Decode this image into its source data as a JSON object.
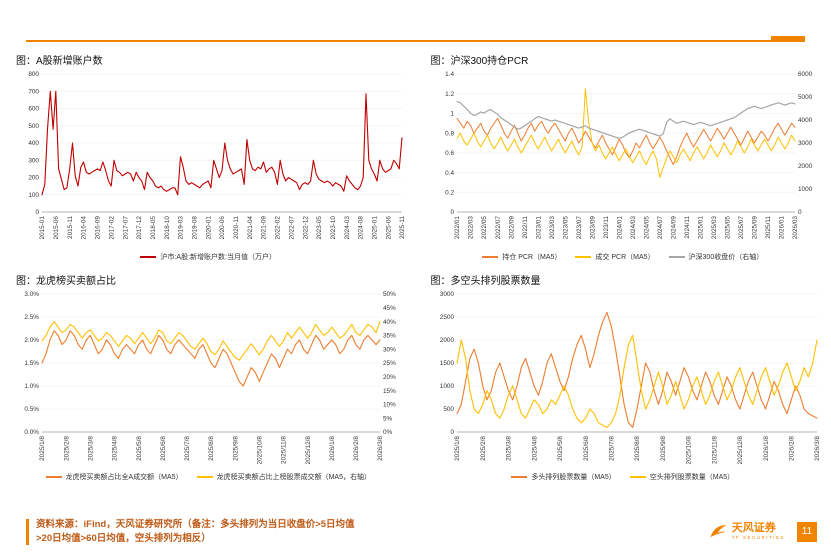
{
  "page": {
    "accent_color": "#F08300",
    "footer": {
      "source_line1": "资料来源：iFind，天风证券研究所（备注：多头排列为当日收盘价>5日均值",
      "source_line2": ">20日均值>60日均值，空头排列为相反）",
      "page_number": "11",
      "logo_text": "天风证券",
      "logo_subtext": "TF SECURITIES"
    }
  },
  "chart_data": [
    {
      "type": "line",
      "title": "图：A股新增账户数",
      "tick_step": 5,
      "x_labels": [
        "2015-01",
        "2015-06",
        "2015-11",
        "2016-04",
        "2016-09",
        "2017-02",
        "2017-07",
        "2017-12",
        "2018-05",
        "2018-10",
        "2019-03",
        "2019-08",
        "2020-01",
        "2020-06",
        "2020-11",
        "2021-04",
        "2021-09",
        "2022-02",
        "2022-07",
        "2022-12",
        "2023-05",
        "2023-10",
        "2024-03",
        "2024-08",
        "2025-01",
        "2025-06",
        "2025-11"
      ],
      "left_axis": {
        "min": 0,
        "max": 800,
        "ticks": [
          "0",
          "100",
          "200",
          "300",
          "400",
          "500",
          "600",
          "700",
          "800"
        ]
      },
      "right_axis": null,
      "series": [
        {
          "name": "沪市:A股:新增账户数:当月值（万户）",
          "color": "#C00000",
          "axis": "left",
          "width": 1.1,
          "values": [
            100,
            160,
            480,
            700,
            480,
            700,
            250,
            190,
            130,
            140,
            250,
            400,
            210,
            150,
            260,
            290,
            230,
            220,
            230,
            240,
            250,
            240,
            290,
            240,
            180,
            150,
            300,
            240,
            230,
            210,
            220,
            230,
            220,
            180,
            230,
            200,
            180,
            130,
            230,
            200,
            180,
            150,
            140,
            150,
            130,
            120,
            130,
            140,
            140,
            100,
            320,
            260,
            180,
            160,
            170,
            160,
            150,
            140,
            160,
            170,
            180,
            140,
            300,
            250,
            200,
            240,
            400,
            300,
            250,
            220,
            230,
            240,
            250,
            160,
            420,
            300,
            250,
            240,
            260,
            250,
            290,
            230,
            250,
            260,
            230,
            160,
            300,
            220,
            180,
            200,
            190,
            180,
            170,
            130,
            160,
            170,
            160,
            180,
            300,
            220,
            190,
            180,
            170,
            180,
            170,
            150,
            170,
            160,
            150,
            120,
            210,
            180,
            160,
            140,
            130,
            150,
            200,
            685,
            300,
            250,
            220,
            180,
            300,
            250,
            230,
            240,
            250,
            300,
            280,
            250,
            430
          ]
        }
      ]
    },
    {
      "type": "line",
      "title": "图：沪深300持仓PCR",
      "tick_step": 4,
      "x_labels": [
        "2022/01",
        "2022/03",
        "2022/05",
        "2022/07",
        "2022/09",
        "2022/11",
        "2023/01",
        "2023/03",
        "2023/05",
        "2023/07",
        "2023/09",
        "2023/11",
        "2024/01",
        "2024/03",
        "2024/05",
        "2024/07",
        "2024/09",
        "2024/11",
        "2025/01",
        "2025/03",
        "2025/05",
        "2025/07",
        "2025/09",
        "2025/11",
        "2026/01",
        "2026/03"
      ],
      "left_axis": {
        "min": 0,
        "max": 1.4,
        "ticks": [
          "0",
          "0.2",
          "0.4",
          "0.6",
          "0.8",
          "1",
          "1.2",
          "1.4"
        ]
      },
      "right_axis": {
        "min": 0,
        "max": 6000,
        "ticks": [
          "0",
          "1000",
          "2000",
          "3000",
          "4000",
          "5000",
          "6000"
        ]
      },
      "series": [
        {
          "name": "持仓 PCR（MA5）",
          "color": "#ED7D31",
          "axis": "left",
          "width": 1.0,
          "values": [
            0.95,
            0.9,
            0.85,
            0.92,
            0.88,
            0.8,
            0.85,
            0.9,
            0.82,
            0.78,
            0.85,
            0.9,
            0.95,
            0.88,
            0.8,
            0.75,
            0.82,
            0.88,
            0.8,
            0.72,
            0.78,
            0.85,
            0.9,
            0.82,
            0.88,
            0.92,
            0.85,
            0.8,
            0.86,
            0.9,
            0.84,
            0.78,
            0.72,
            0.8,
            0.85,
            0.78,
            0.7,
            0.75,
            0.82,
            0.76,
            0.7,
            0.65,
            0.72,
            0.78,
            0.7,
            0.64,
            0.58,
            0.66,
            0.74,
            0.68,
            0.6,
            0.55,
            0.62,
            0.7,
            0.65,
            0.72,
            0.78,
            0.7,
            0.64,
            0.7,
            0.76,
            0.7,
            0.62,
            0.55,
            0.48,
            0.56,
            0.66,
            0.74,
            0.8,
            0.72,
            0.66,
            0.72,
            0.78,
            0.84,
            0.78,
            0.72,
            0.78,
            0.85,
            0.8,
            0.74,
            0.8,
            0.86,
            0.8,
            0.74,
            0.68,
            0.75,
            0.82,
            0.76,
            0.7,
            0.76,
            0.82,
            0.78,
            0.72,
            0.78,
            0.85,
            0.9,
            0.84,
            0.78,
            0.84,
            0.9,
            0.86
          ]
        },
        {
          "name": "成交 PCR（MA5）",
          "color": "#FFC000",
          "axis": "left",
          "width": 1.0,
          "values": [
            0.75,
            0.8,
            0.72,
            0.68,
            0.74,
            0.8,
            0.72,
            0.66,
            0.72,
            0.78,
            0.7,
            0.64,
            0.7,
            0.76,
            0.68,
            0.62,
            0.68,
            0.74,
            0.66,
            0.6,
            0.66,
            0.72,
            0.78,
            0.7,
            0.64,
            0.7,
            0.76,
            0.68,
            0.62,
            0.68,
            0.74,
            0.66,
            0.6,
            0.66,
            0.72,
            0.64,
            0.58,
            0.66,
            1.25,
            0.9,
            0.7,
            0.62,
            0.68,
            0.6,
            0.54,
            0.6,
            0.66,
            0.58,
            0.52,
            0.58,
            0.64,
            0.56,
            0.5,
            0.56,
            0.62,
            0.54,
            0.48,
            0.56,
            0.62,
            0.54,
            0.35,
            0.45,
            0.55,
            0.62,
            0.56,
            0.5,
            0.58,
            0.64,
            0.58,
            0.52,
            0.6,
            0.66,
            0.6,
            0.54,
            0.6,
            0.68,
            0.62,
            0.56,
            0.62,
            0.7,
            0.64,
            0.58,
            0.64,
            0.72,
            0.66,
            0.6,
            0.66,
            0.74,
            0.68,
            0.62,
            0.68,
            0.74,
            0.68,
            0.62,
            0.68,
            0.76,
            0.7,
            0.64,
            0.7,
            0.78,
            0.72
          ]
        },
        {
          "name": "沪深300收盘价（右轴）",
          "color": "#A6A6A6",
          "axis": "right",
          "width": 1.2,
          "values": [
            4800,
            4750,
            4600,
            4450,
            4300,
            4200,
            4250,
            4350,
            4300,
            4400,
            4450,
            4350,
            4250,
            4100,
            4000,
            3900,
            3800,
            3700,
            3600,
            3650,
            3750,
            3850,
            3950,
            4050,
            4150,
            4100,
            4050,
            4000,
            3950,
            4000,
            3950,
            3900,
            3850,
            3800,
            3750,
            3700,
            3650,
            3700,
            3750,
            3650,
            3600,
            3550,
            3500,
            3450,
            3400,
            3350,
            3300,
            3250,
            3200,
            3250,
            3350,
            3450,
            3500,
            3550,
            3600,
            3550,
            3500,
            3450,
            3400,
            3350,
            3300,
            3400,
            3900,
            4050,
            3950,
            3850,
            3900,
            3950,
            3900,
            3850,
            3800,
            3850,
            3900,
            3850,
            3800,
            3750,
            3800,
            3850,
            3900,
            3950,
            4000,
            4050,
            4100,
            4200,
            4300,
            4400,
            4500,
            4550,
            4600,
            4550,
            4500,
            4550,
            4600,
            4650,
            4700,
            4750,
            4700,
            4650,
            4700,
            4750,
            4700
          ]
        }
      ]
    },
    {
      "type": "line",
      "title": "图：龙虎榜买卖额占比",
      "tick_step": 6,
      "x_labels": [
        "2025/1/8",
        "2025/2/8",
        "2025/3/8",
        "2025/4/8",
        "2025/5/8",
        "2025/6/8",
        "2025/7/8",
        "2025/8/8",
        "2025/9/8",
        "2025/10/8",
        "2025/11/8",
        "2025/12/8",
        "2026/1/8",
        "2026/2/8",
        "2026/3/8"
      ],
      "left_axis": {
        "min": 0,
        "max": 3,
        "ticks": [
          "0.0%",
          "0.5%",
          "1.0%",
          "1.5%",
          "2.0%",
          "2.5%",
          "3.0%"
        ]
      },
      "right_axis": {
        "min": 0,
        "max": 50,
        "ticks": [
          "0%",
          "5%",
          "10%",
          "15%",
          "20%",
          "25%",
          "30%",
          "35%",
          "40%",
          "45%",
          "50%"
        ]
      },
      "series": [
        {
          "name": "龙虎榜买卖额占比全A成交额（MA5）",
          "color": "#ED7D31",
          "axis": "left",
          "width": 1.1,
          "values": [
            1.5,
            1.7,
            2.0,
            2.2,
            2.1,
            1.9,
            2.0,
            2.2,
            2.1,
            1.9,
            1.8,
            2.0,
            2.1,
            1.9,
            1.7,
            1.8,
            2.0,
            1.9,
            1.7,
            1.6,
            1.8,
            1.9,
            1.8,
            1.7,
            1.9,
            2.0,
            1.8,
            1.7,
            1.9,
            2.1,
            2.0,
            1.8,
            1.7,
            1.9,
            2.0,
            1.9,
            1.8,
            1.7,
            1.6,
            1.8,
            1.9,
            1.7,
            1.5,
            1.4,
            1.6,
            1.8,
            1.7,
            1.5,
            1.3,
            1.1,
            1.0,
            1.2,
            1.4,
            1.3,
            1.1,
            1.3,
            1.5,
            1.7,
            1.6,
            1.4,
            1.6,
            1.8,
            1.7,
            1.9,
            2.0,
            1.8,
            1.7,
            1.9,
            2.1,
            2.0,
            1.8,
            1.9,
            2.0,
            1.9,
            1.7,
            1.8,
            2.0,
            2.1,
            1.9,
            1.8,
            2.0,
            2.1,
            2.0,
            1.9,
            2.0
          ]
        },
        {
          "name": "龙虎榜买卖额占比上榜股票成交额（MA5，右轴）",
          "color": "#FFC000",
          "axis": "right",
          "width": 1.1,
          "values": [
            33,
            35,
            38,
            40,
            38,
            36,
            37,
            39,
            38,
            36,
            34,
            36,
            37,
            35,
            33,
            34,
            36,
            35,
            33,
            31,
            33,
            35,
            34,
            32,
            34,
            36,
            34,
            32,
            34,
            37,
            36,
            33,
            32,
            34,
            36,
            35,
            33,
            31,
            30,
            32,
            34,
            32,
            29,
            28,
            30,
            33,
            31,
            29,
            27,
            26,
            28,
            30,
            32,
            30,
            28,
            30,
            33,
            35,
            33,
            31,
            33,
            36,
            34,
            36,
            38,
            36,
            34,
            36,
            39,
            37,
            35,
            36,
            38,
            36,
            34,
            35,
            37,
            39,
            36,
            35,
            37,
            39,
            38,
            36,
            40
          ]
        }
      ]
    },
    {
      "type": "line",
      "title": "图：多空头排列股票数量",
      "tick_step": 6,
      "x_labels": [
        "2025/1/8",
        "2025/2/8",
        "2025/3/8",
        "2025/4/8",
        "2025/5/8",
        "2025/6/8",
        "2025/7/8",
        "2025/8/8",
        "2025/9/8",
        "2025/10/8",
        "2025/11/8",
        "2025/12/8",
        "2026/1/8",
        "2026/2/8",
        "2026/3/8"
      ],
      "left_axis": {
        "min": 0,
        "max": 3000,
        "ticks": [
          "0",
          "500",
          "1000",
          "1500",
          "2000",
          "2500",
          "3000"
        ]
      },
      "right_axis": null,
      "series": [
        {
          "name": "多头排列股票数量（MA5）",
          "color": "#ED7D31",
          "axis": "left",
          "width": 1.1,
          "values": [
            400,
            600,
            1100,
            1600,
            1800,
            1500,
            1000,
            700,
            900,
            1300,
            1500,
            1200,
            900,
            700,
            1000,
            1400,
            1600,
            1300,
            1000,
            800,
            1100,
            1500,
            1700,
            1400,
            1100,
            900,
            1200,
            1600,
            1900,
            2100,
            1800,
            1400,
            1700,
            2100,
            2400,
            2600,
            2300,
            1800,
            1200,
            600,
            200,
            100,
            500,
            1000,
            1500,
            1300,
            900,
            600,
            900,
            1300,
            1100,
            800,
            1100,
            1400,
            1200,
            900,
            700,
            1000,
            1300,
            1100,
            800,
            600,
            900,
            1200,
            1000,
            700,
            500,
            800,
            1100,
            1300,
            1000,
            700,
            500,
            800,
            1100,
            900,
            600,
            400,
            700,
            1000,
            800,
            500,
            400,
            350,
            300
          ]
        },
        {
          "name": "空头排列股票数量（MA5）",
          "color": "#FFC000",
          "axis": "left",
          "width": 1.1,
          "values": [
            1500,
            2000,
            1600,
            900,
            500,
            400,
            600,
            900,
            700,
            400,
            300,
            500,
            800,
            1000,
            700,
            400,
            300,
            500,
            700,
            600,
            400,
            500,
            700,
            600,
            800,
            1000,
            800,
            500,
            300,
            200,
            300,
            500,
            400,
            200,
            150,
            100,
            200,
            400,
            800,
            1400,
            1900,
            2100,
            1500,
            900,
            500,
            700,
            1000,
            1300,
            1000,
            600,
            800,
            1100,
            800,
            500,
            700,
            1000,
            1200,
            900,
            600,
            800,
            1100,
            1300,
            1000,
            700,
            900,
            1200,
            1400,
            1100,
            800,
            600,
            900,
            1200,
            1400,
            1100,
            800,
            1000,
            1300,
            1500,
            1200,
            900,
            1100,
            1400,
            1200,
            1500,
            2000
          ]
        }
      ]
    }
  ]
}
